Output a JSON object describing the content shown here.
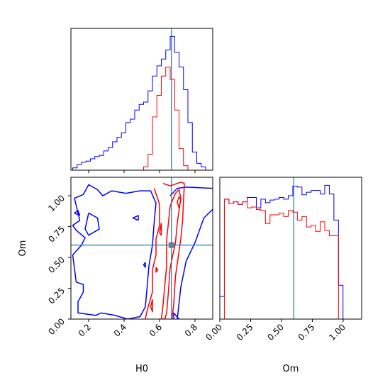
{
  "chart_data": [
    {
      "type": "histogram",
      "panel": "H0 marginal",
      "truth_value": 0.667,
      "truth_color": "#1f77b4",
      "xlim": [
        0.1,
        0.9
      ],
      "x_ticks": [
        0.2,
        0.4,
        0.6,
        0.8
      ],
      "bin_edges": [
        0.11,
        0.135,
        0.16,
        0.185,
        0.21,
        0.235,
        0.26,
        0.285,
        0.31,
        0.335,
        0.36,
        0.385,
        0.41,
        0.435,
        0.46,
        0.485,
        0.51,
        0.535,
        0.56,
        0.585,
        0.61,
        0.635,
        0.66,
        0.685,
        0.71,
        0.735,
        0.76,
        0.785,
        0.81,
        0.835,
        0.86,
        0.885
      ],
      "series": [
        {
          "color": "#0000ff",
          "values": [
            2,
            5,
            7,
            8,
            10,
            12,
            13,
            17,
            20,
            25,
            29,
            33,
            42,
            45,
            53,
            58,
            60,
            70,
            83,
            92,
            98,
            106,
            118,
            104,
            91,
            71,
            42,
            16,
            6,
            3,
            0
          ]
        },
        {
          "color": "#ff0000",
          "values": [
            0,
            0,
            0,
            0,
            0,
            0,
            0,
            0,
            0,
            0,
            0,
            0,
            0,
            0,
            0,
            0,
            3,
            14,
            47,
            66,
            83,
            91,
            80,
            53,
            19,
            4,
            0,
            0,
            0,
            0,
            0
          ]
        }
      ]
    },
    {
      "type": "contour",
      "panel": "H0 vs Om",
      "xlabel": "H0",
      "ylabel": "Om",
      "xlim": [
        0.1,
        0.9
      ],
      "ylim": [
        0.0,
        1.15
      ],
      "x_ticks": [
        0.2,
        0.4,
        0.6,
        0.8
      ],
      "y_ticks": [
        0.0,
        0.25,
        0.5,
        0.75,
        1.0
      ],
      "truth": {
        "x": 0.667,
        "y": 0.6
      },
      "truth_color": "#1f77b4",
      "marker_color": "#5f7f9f",
      "series": [
        {
          "color": "#0000ff",
          "contours": [
            [
              [
                0.66,
                1.0
              ],
              [
                0.7,
                1.06
              ],
              [
                0.75,
                1.07
              ],
              [
                0.9,
                1.06
              ]
            ],
            [
              [
                0.9,
                0.89
              ],
              [
                0.85,
                0.82
              ],
              [
                0.8,
                0.62
              ],
              [
                0.75,
                0.47
              ],
              [
                0.72,
                0.26
              ],
              [
                0.7,
                0.0
              ]
            ],
            [
              [
                0.71,
                0.0
              ],
              [
                0.68,
                0.05
              ],
              [
                0.68,
                0.0
              ]
            ],
            [
              [
                0.42,
                0.0
              ],
              [
                0.35,
                0.03
              ],
              [
                0.27,
                0.05
              ],
              [
                0.24,
                0.03
              ],
              [
                0.14,
                0.05
              ],
              [
                0.14,
                0.14
              ],
              [
                0.17,
                0.22
              ],
              [
                0.17,
                0.28
              ],
              [
                0.13,
                0.3
              ],
              [
                0.11,
                0.52
              ],
              [
                0.16,
                0.6
              ],
              [
                0.18,
                0.66
              ],
              [
                0.13,
                0.72
              ],
              [
                0.11,
                0.76
              ],
              [
                0.15,
                0.8
              ],
              [
                0.12,
                0.98
              ],
              [
                0.17,
                1.01
              ],
              [
                0.2,
                1.09
              ],
              [
                0.25,
                1.05
              ],
              [
                0.28,
                1.0
              ],
              [
                0.33,
                1.04
              ],
              [
                0.41,
                1.02
              ],
              [
                0.49,
                1.04
              ],
              [
                0.55,
                1.04
              ],
              [
                0.58,
                0.94
              ],
              [
                0.57,
                0.79
              ],
              [
                0.56,
                0.6
              ],
              [
                0.54,
                0.43
              ],
              [
                0.53,
                0.26
              ],
              [
                0.52,
                0.1
              ],
              [
                0.49,
                0.02
              ],
              [
                0.42,
                0.0
              ]
            ],
            [
              [
                0.15,
                0.84
              ],
              [
                0.12,
                0.86
              ],
              [
                0.14,
                0.88
              ],
              [
                0.15,
                0.84
              ]
            ],
            [
              [
                0.2,
                0.86
              ],
              [
                0.25,
                0.82
              ],
              [
                0.26,
                0.73
              ],
              [
                0.2,
                0.68
              ],
              [
                0.18,
                0.73
              ],
              [
                0.2,
                0.86
              ]
            ],
            [
              [
                0.48,
                0.8
              ],
              [
                0.45,
                0.82
              ],
              [
                0.48,
                0.84
              ],
              [
                0.48,
                0.8
              ]
            ],
            [
              [
                0.52,
                0.46
              ],
              [
                0.51,
                0.44
              ],
              [
                0.52,
                0.42
              ],
              [
                0.52,
                0.46
              ]
            ]
          ]
        },
        {
          "color": "#ff0000",
          "contours": [
            [
              [
                0.57,
                1.06
              ],
              [
                0.6,
                0.93
              ],
              [
                0.6,
                0.76
              ],
              [
                0.58,
                0.65
              ],
              [
                0.58,
                0.52
              ],
              [
                0.56,
                0.4
              ],
              [
                0.56,
                0.22
              ],
              [
                0.53,
                0.07
              ],
              [
                0.52,
                0.0
              ]
            ],
            [
              [
                0.62,
                1.1
              ],
              [
                0.66,
                1.08
              ],
              [
                0.72,
                1.11
              ],
              [
                0.74,
                1.1
              ]
            ],
            [
              [
                0.74,
                1.1
              ],
              [
                0.73,
                0.8
              ],
              [
                0.72,
                0.65
              ],
              [
                0.69,
                0.35
              ],
              [
                0.68,
                0.12
              ],
              [
                0.67,
                0.0
              ]
            ],
            [
              [
                0.61,
                0.0
              ],
              [
                0.62,
                0.12
              ],
              [
                0.63,
                0.28
              ],
              [
                0.64,
                0.43
              ],
              [
                0.64,
                0.64
              ],
              [
                0.65,
                0.78
              ],
              [
                0.66,
                0.92
              ],
              [
                0.69,
                1.02
              ],
              [
                0.71,
                1.05
              ],
              [
                0.72,
                0.98
              ],
              [
                0.7,
                0.78
              ],
              [
                0.69,
                0.62
              ],
              [
                0.66,
                0.42
              ],
              [
                0.65,
                0.22
              ],
              [
                0.64,
                0.05
              ],
              [
                0.63,
                0.0
              ],
              [
                0.61,
                0.0
              ]
            ],
            [
              [
                0.61,
                0.78
              ],
              [
                0.6,
                0.7
              ],
              [
                0.61,
                0.68
              ],
              [
                0.61,
                0.78
              ]
            ],
            [
              [
                0.56,
                0.16
              ],
              [
                0.55,
                0.1
              ],
              [
                0.56,
                0.06
              ],
              [
                0.56,
                0.16
              ]
            ],
            [
              [
                0.58,
                0.42
              ],
              [
                0.58,
                0.38
              ],
              [
                0.59,
                0.4
              ],
              [
                0.58,
                0.42
              ]
            ],
            [
              [
                0.71,
                0.9
              ],
              [
                0.7,
                0.95
              ],
              [
                0.71,
                0.99
              ],
              [
                0.72,
                0.97
              ],
              [
                0.71,
                0.9
              ]
            ]
          ]
        }
      ]
    },
    {
      "type": "histogram",
      "panel": "Om marginal",
      "xlabel": "Om",
      "truth_value": 0.6,
      "truth_color": "#1f77b4",
      "xlim": [
        0.0,
        1.15
      ],
      "x_ticks": [
        0.0,
        0.25,
        0.5,
        0.75,
        1.0
      ],
      "bin_edges": [
        0.0,
        0.037,
        0.074,
        0.111,
        0.148,
        0.185,
        0.222,
        0.259,
        0.296,
        0.333,
        0.37,
        0.407,
        0.444,
        0.481,
        0.518,
        0.555,
        0.592,
        0.629,
        0.666,
        0.703,
        0.74,
        0.777,
        0.814,
        0.851,
        0.888,
        0.925,
        0.962,
        0.999,
        1.036
      ],
      "series": [
        {
          "color": "#0000ff",
          "values": [
            26,
            138,
            133,
            135,
            132,
            135,
            140,
            140,
            128,
            138,
            134,
            137,
            138,
            140,
            138,
            142,
            153,
            152,
            143,
            146,
            148,
            148,
            144,
            154,
            144,
            114,
            39,
            0
          ]
        },
        {
          "color": "#ff0000",
          "values": [
            0,
            138,
            133,
            135,
            132,
            135,
            128,
            129,
            126,
            125,
            110,
            120,
            120,
            122,
            118,
            125,
            123,
            114,
            118,
            106,
            108,
            101,
            112,
            102,
            96,
            96,
            0,
            0
          ]
        }
      ]
    }
  ]
}
